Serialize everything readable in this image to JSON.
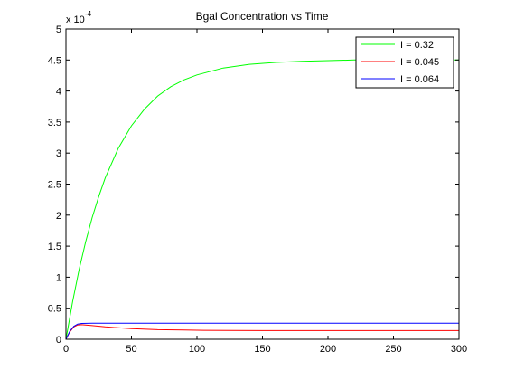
{
  "chart_data": {
    "type": "line",
    "title": "Bgal Concentration vs Time",
    "xlabel": "",
    "ylabel": "",
    "xlim": [
      0,
      300
    ],
    "ylim": [
      0,
      5
    ],
    "y_exponent_label": "x 10",
    "y_exponent_power": "-4",
    "grid": false,
    "legend_position": "top-right",
    "xticks": [
      "0",
      "50",
      "100",
      "150",
      "200",
      "250",
      "300"
    ],
    "yticks": [
      "0",
      "0.5",
      "1",
      "1.5",
      "2",
      "2.5",
      "3",
      "3.5",
      "4",
      "4.5",
      "5"
    ],
    "series": [
      {
        "name": "I = 0.32",
        "color": "#00ff00",
        "x": [
          0,
          5,
          10,
          15,
          20,
          25,
          30,
          40,
          50,
          60,
          70,
          80,
          90,
          100,
          120,
          140,
          160,
          180,
          200,
          220,
          250,
          280,
          300
        ],
        "y": [
          0,
          0.6,
          1.12,
          1.57,
          1.96,
          2.3,
          2.6,
          3.08,
          3.44,
          3.71,
          3.92,
          4.07,
          4.18,
          4.26,
          4.37,
          4.43,
          4.46,
          4.48,
          4.49,
          4.5,
          4.5,
          4.5,
          4.5
        ]
      },
      {
        "name": "I = 0.045",
        "color": "#ff0000",
        "x": [
          0,
          3,
          6,
          9,
          12,
          20,
          30,
          50,
          70,
          90,
          105,
          150,
          200,
          250,
          300
        ],
        "y": [
          0,
          0.12,
          0.2,
          0.23,
          0.235,
          0.22,
          0.2,
          0.17,
          0.155,
          0.15,
          0.145,
          0.14,
          0.14,
          0.14,
          0.14
        ]
      },
      {
        "name": "I = 0.064",
        "color": "#0000ff",
        "x": [
          0,
          3,
          6,
          9,
          12,
          20,
          30,
          60,
          100,
          150,
          200,
          250,
          300
        ],
        "y": [
          0,
          0.13,
          0.21,
          0.245,
          0.255,
          0.26,
          0.26,
          0.26,
          0.26,
          0.26,
          0.26,
          0.26,
          0.26
        ]
      }
    ]
  }
}
